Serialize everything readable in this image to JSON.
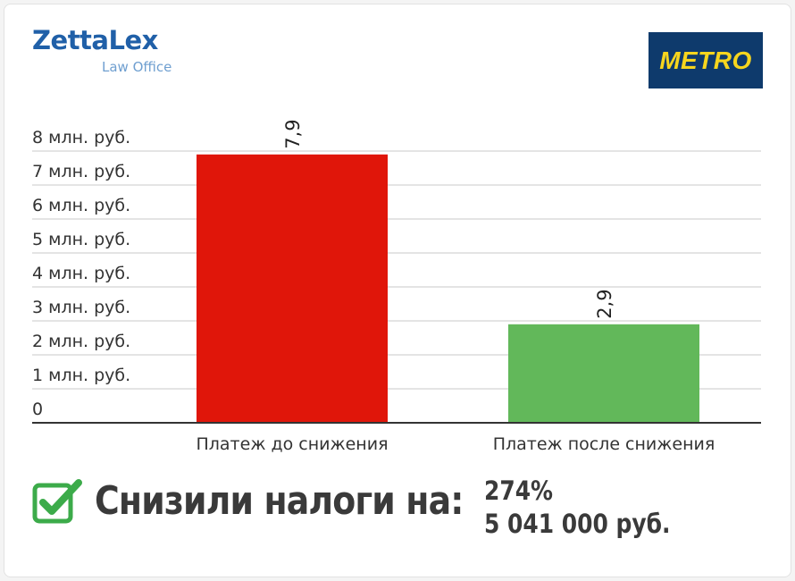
{
  "brand": {
    "name": "ZettaLex",
    "subtitle": "Law Office"
  },
  "partner_logo": {
    "text": "METRO",
    "bg": "#0e3a6c",
    "fg": "#f6d51e"
  },
  "chart_data": {
    "type": "bar",
    "categories": [
      "Платеж до снижения",
      "Платеж после снижения"
    ],
    "values": [
      7.9,
      2.9
    ],
    "value_labels": [
      "7,9",
      "2,9"
    ],
    "colors": [
      "#e0160a",
      "#62b85a"
    ],
    "ylim": [
      0,
      8
    ],
    "yticks": [
      {
        "value": 8,
        "label": "8 млн. руб."
      },
      {
        "value": 7,
        "label": "7 млн. руб."
      },
      {
        "value": 6,
        "label": "6 млн. руб."
      },
      {
        "value": 5,
        "label": "5 млн. руб."
      },
      {
        "value": 4,
        "label": "4 млн. руб."
      },
      {
        "value": 3,
        "label": "3 млн. руб."
      },
      {
        "value": 2,
        "label": "2 млн. руб."
      },
      {
        "value": 1,
        "label": "1 млн. руб."
      },
      {
        "value": 0,
        "label": "0"
      }
    ],
    "grid": true
  },
  "result": {
    "title": "Снизили налоги на:",
    "percent": "274%",
    "amount": "5 041 000 руб.",
    "check_color": "#3cab4a"
  }
}
